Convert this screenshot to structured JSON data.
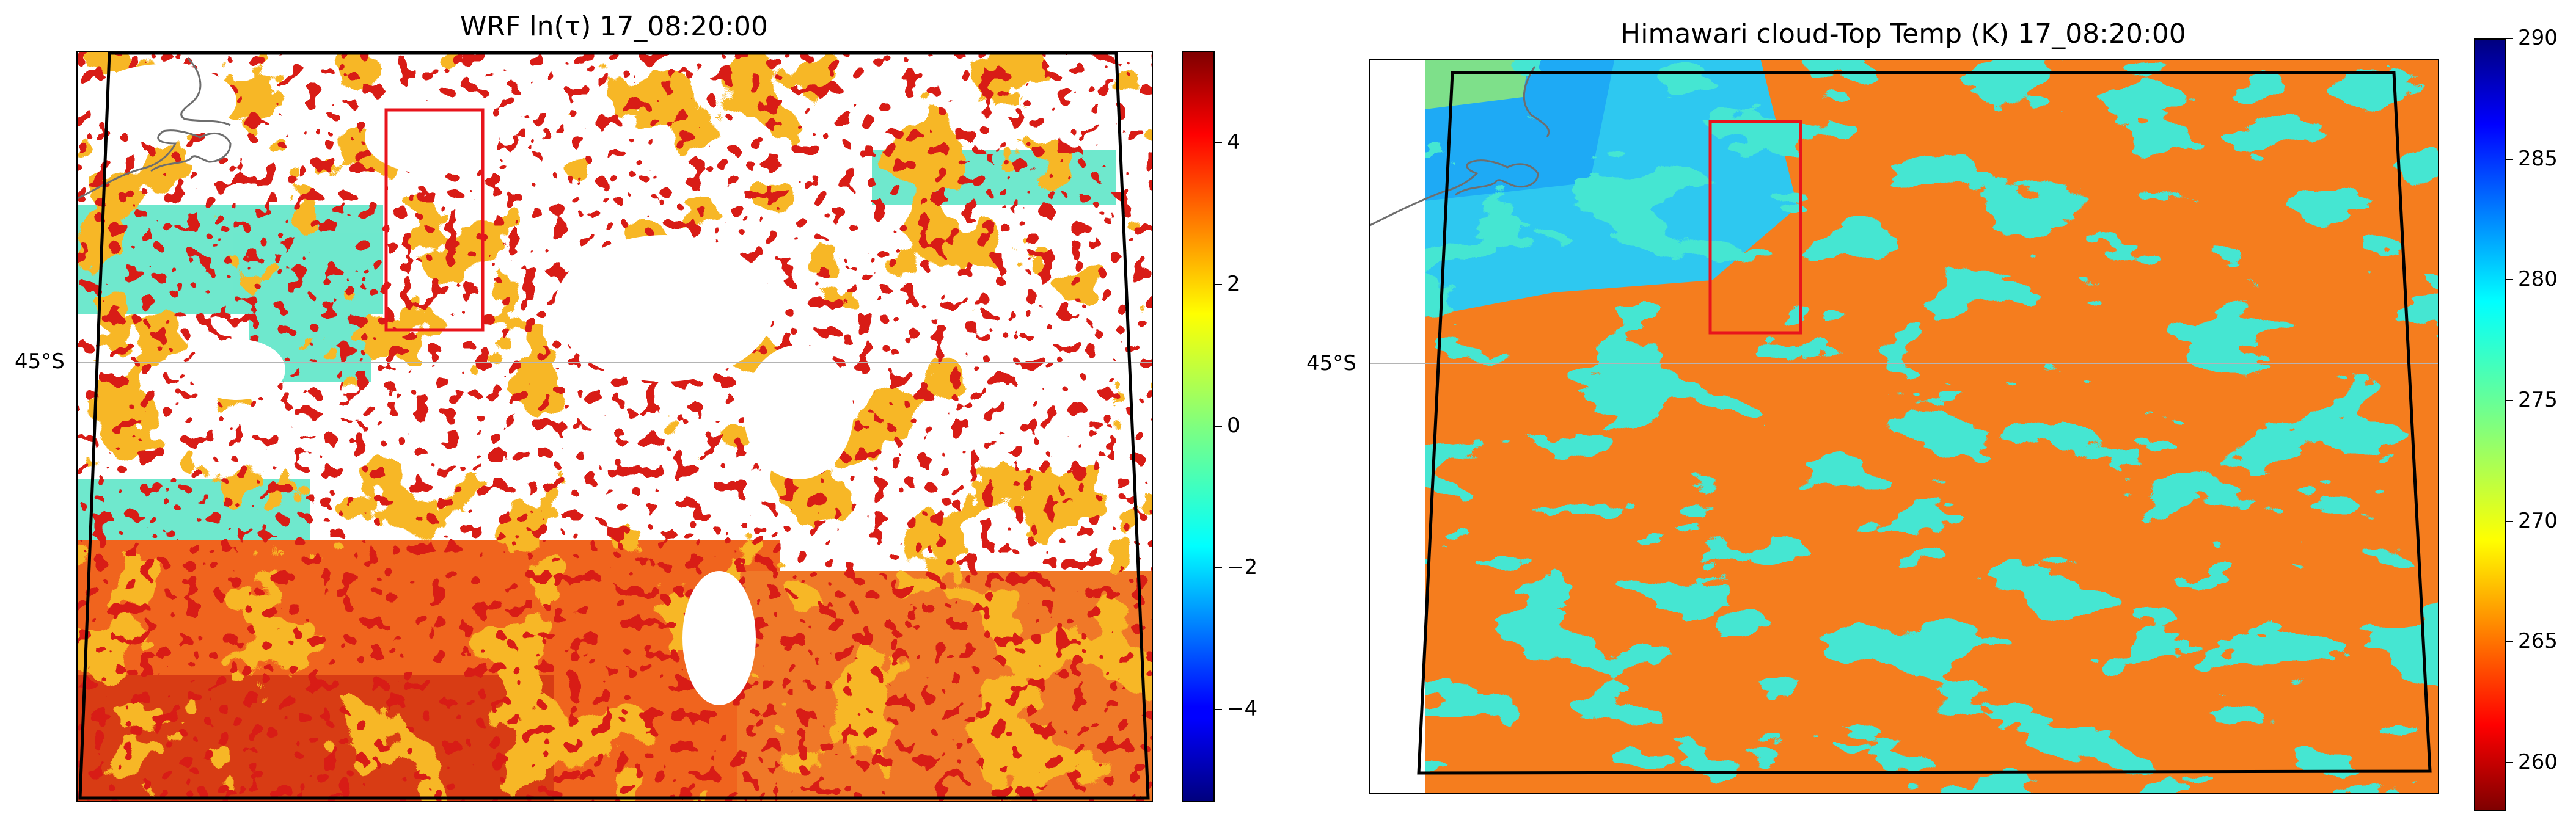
{
  "chart_data": [
    {
      "type": "heatmap",
      "title": "WRF ln(τ) 17_08:20:00",
      "xlabel": "",
      "ylabel": "",
      "gridline_label": "45°S",
      "colormap": "jet",
      "colorbar": {
        "range": [
          -5.3,
          5.3
        ],
        "ticks": [
          -4,
          -2,
          0,
          2,
          4
        ],
        "tick_labels": [
          "−4",
          "−2",
          "0",
          "2",
          "4"
        ]
      },
      "features": [
        "coastline (top-left)",
        "black domain outline",
        "red subregion box",
        "white = no cloud"
      ]
    },
    {
      "type": "heatmap",
      "title": "Himawari cloud-Top Temp (K) 17_08:20:00",
      "xlabel": "",
      "ylabel": "",
      "gridline_label": "45°S",
      "colormap": "jet_r",
      "colorbar": {
        "range": [
          258,
          290
        ],
        "ticks": [
          260,
          265,
          270,
          275,
          280,
          285,
          290
        ],
        "tick_labels": [
          "260",
          "265",
          "270",
          "275",
          "280",
          "285",
          "290"
        ]
      },
      "features": [
        "coastline (top-left)",
        "black domain outline",
        "red subregion box"
      ]
    }
  ],
  "colors": {
    "outline": "#000000",
    "subregion_box": "#e8141c",
    "gridline": "#b4b4b4",
    "coastline": "#6e6e6e"
  }
}
